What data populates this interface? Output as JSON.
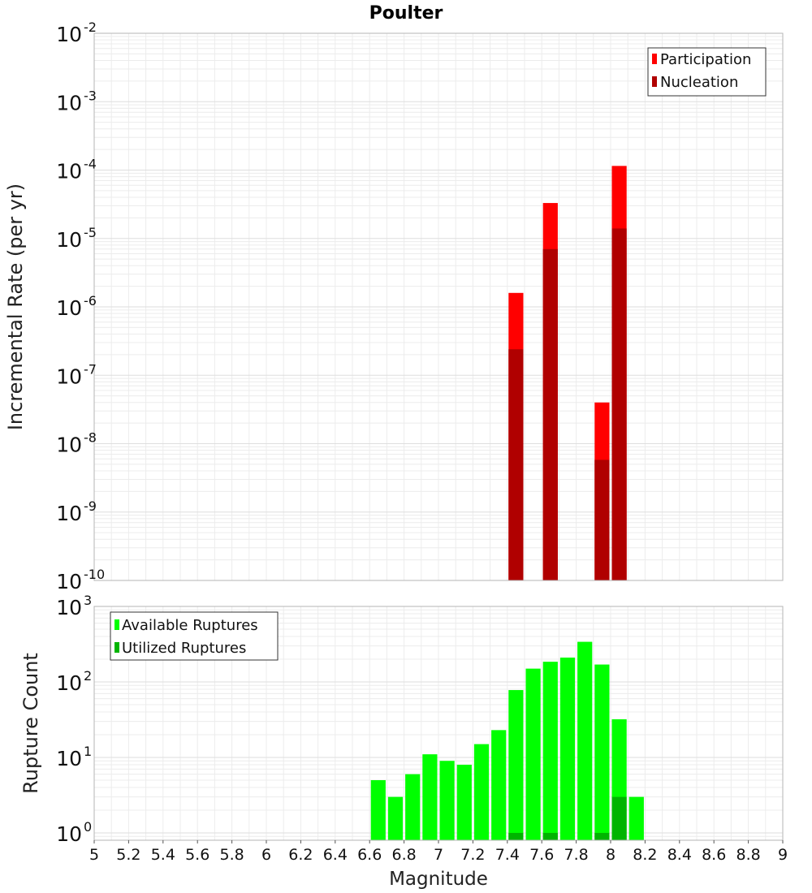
{
  "chart_data": [
    {
      "type": "bar",
      "title": "Poulter",
      "xlabel": "",
      "ylabel": "Incremental Rate (per yr)",
      "yscale": "log",
      "ylim": [
        1e-10,
        0.01
      ],
      "xlim": [
        5,
        9
      ],
      "y_tick_exponents": [
        "-2",
        "-3",
        "-4",
        "-5",
        "-6",
        "-7",
        "-8",
        "-9",
        "-10"
      ],
      "legend": {
        "position": "top-right",
        "entries": [
          "Participation",
          "Nucleation"
        ]
      },
      "bin_width": 0.1,
      "series": [
        {
          "name": "Participation",
          "color": "#ff0000",
          "x": [
            7.45,
            7.65,
            7.95,
            8.05
          ],
          "values": [
            1.6e-06,
            3.3e-05,
            4e-08,
            0.000115
          ]
        },
        {
          "name": "Nucleation",
          "color": "#b00000",
          "x": [
            7.45,
            7.65,
            7.95,
            8.05
          ],
          "values": [
            2.4e-07,
            7e-06,
            5.8e-09,
            1.4e-05
          ]
        }
      ]
    },
    {
      "type": "bar",
      "title": "",
      "xlabel": "Magnitude",
      "ylabel": "Rupture Count",
      "yscale": "log",
      "ylim": [
        0.8,
        1000
      ],
      "xlim": [
        5,
        9
      ],
      "y_tick_exponents": [
        "3",
        "2",
        "1",
        "0"
      ],
      "x_tick_labels": [
        "5",
        "5.2",
        "5.4",
        "5.6",
        "5.8",
        "6",
        "6.2",
        "6.4",
        "6.6",
        "6.8",
        "7",
        "7.2",
        "7.4",
        "7.6",
        "7.8",
        "8",
        "8.2",
        "8.4",
        "8.6",
        "8.8",
        "9"
      ],
      "legend": {
        "position": "top-left",
        "entries": [
          "Available Ruptures",
          "Utilized Ruptures"
        ]
      },
      "bin_width": 0.1,
      "series": [
        {
          "name": "Available Ruptures",
          "color": "#00ff00",
          "x": [
            6.65,
            6.75,
            6.85,
            6.95,
            7.05,
            7.15,
            7.25,
            7.35,
            7.45,
            7.55,
            7.65,
            7.75,
            7.85,
            7.95,
            8.05,
            8.15
          ],
          "values": [
            5,
            3,
            6,
            11,
            9,
            8,
            15,
            23,
            78,
            150,
            185,
            210,
            340,
            170,
            32,
            3
          ]
        },
        {
          "name": "Utilized Ruptures",
          "color": "#00b400",
          "x": [
            7.45,
            7.65,
            7.95,
            8.05
          ],
          "values": [
            1,
            1,
            1,
            3
          ]
        }
      ]
    }
  ]
}
